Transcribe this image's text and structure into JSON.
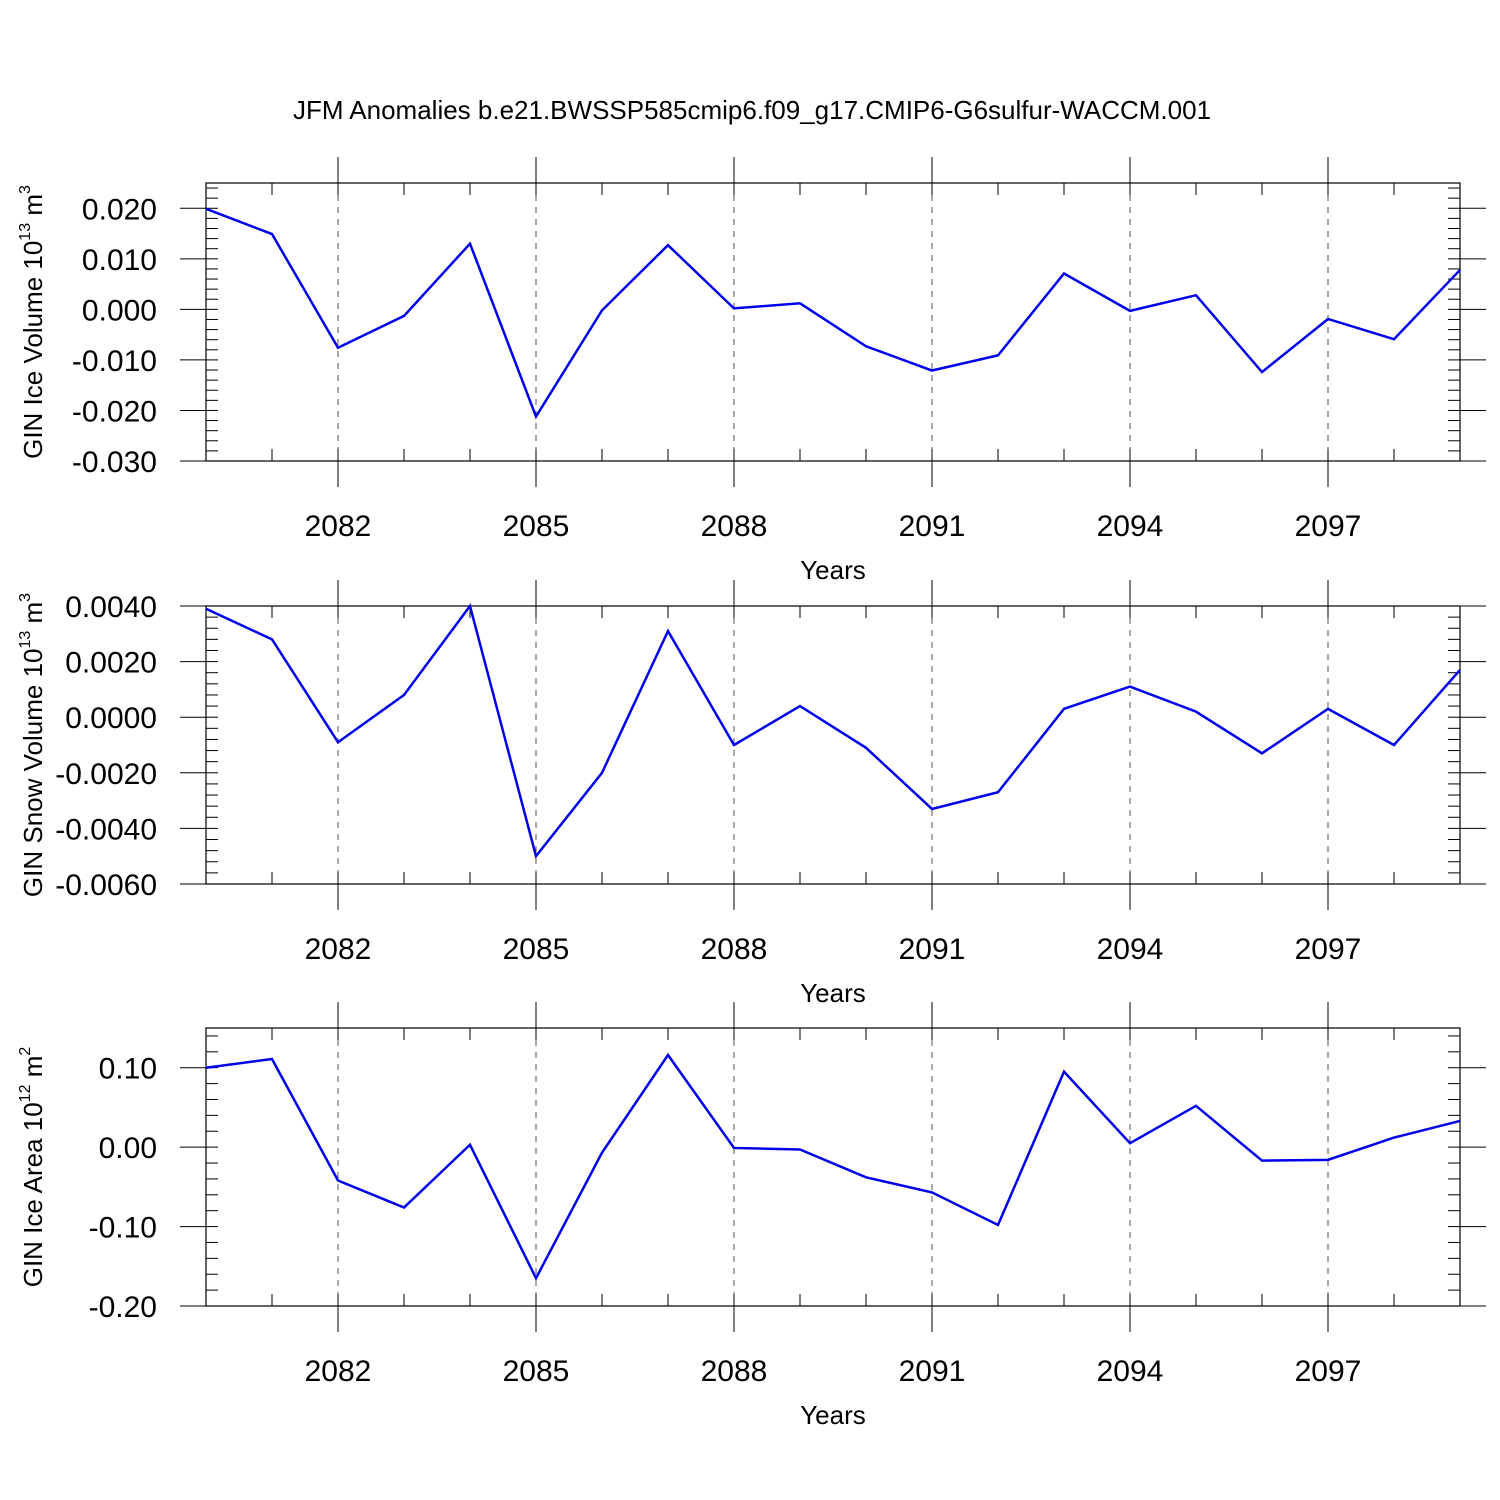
{
  "title": "JFM Anomalies b.e21.BWSSP585cmip6.f09_g17.CMIP6-G6sulfur-WACCM.001",
  "colors": {
    "line": "#0000ee",
    "axes": "#000000",
    "grid": "#555555"
  },
  "chart_data": [
    {
      "type": "line",
      "xlabel": "Years",
      "ylabel": {
        "text": "GIN Ice Volume 10",
        "exp": "13",
        "unit": " m",
        "unit_exp": "3"
      },
      "xlim": [
        2080,
        2099
      ],
      "x_ticks": [
        2082,
        2085,
        2088,
        2091,
        2094,
        2097
      ],
      "x_tick_labels": [
        "2082",
        "2085",
        "2088",
        "2091",
        "2094",
        "2097"
      ],
      "ylim": [
        -0.03,
        0.025
      ],
      "y_ticks": [
        0.02,
        0.01,
        0.0,
        -0.01,
        -0.02,
        -0.03
      ],
      "y_tick_labels": [
        "0.020",
        "0.010",
        "0.000",
        "-0.010",
        "-0.020",
        "-0.030"
      ],
      "grid": "vertical dashed at major x ticks",
      "series": [
        {
          "x": [
            2080,
            2081,
            2082,
            2083,
            2084,
            2085,
            2086,
            2087,
            2088,
            2089,
            2090,
            2091,
            2092,
            2093,
            2094,
            2095,
            2096,
            2097,
            2098,
            2099
          ],
          "values": [
            0.0199,
            0.0149,
            -0.0076,
            -0.0013,
            0.013,
            -0.0212,
            -0.0002,
            0.0127,
            0.0002,
            0.0012,
            -0.0073,
            -0.0121,
            -0.0091,
            0.0071,
            -0.0003,
            0.0028,
            -0.0124,
            -0.0019,
            -0.0059,
            0.0078
          ]
        }
      ]
    },
    {
      "type": "line",
      "xlabel": "Years",
      "ylabel": {
        "text": "GIN Snow Volume 10",
        "exp": "13",
        "unit": " m",
        "unit_exp": "3"
      },
      "xlim": [
        2080,
        2099
      ],
      "x_ticks": [
        2082,
        2085,
        2088,
        2091,
        2094,
        2097
      ],
      "x_tick_labels": [
        "2082",
        "2085",
        "2088",
        "2091",
        "2094",
        "2097"
      ],
      "ylim": [
        -0.006,
        0.004
      ],
      "y_ticks": [
        0.004,
        0.002,
        0.0,
        -0.002,
        -0.004,
        -0.006
      ],
      "y_tick_labels": [
        "0.0040",
        "0.0020",
        "0.0000",
        "-0.0020",
        "-0.0040",
        "-0.0060"
      ],
      "grid": "vertical dashed at major x ticks",
      "series": [
        {
          "x": [
            2080,
            2081,
            2082,
            2083,
            2084,
            2085,
            2086,
            2087,
            2088,
            2089,
            2090,
            2091,
            2092,
            2093,
            2094,
            2095,
            2096,
            2097,
            2098,
            2099
          ],
          "values": [
            0.0039,
            0.0028,
            -0.0009,
            0.0008,
            0.004,
            -0.005,
            -0.002,
            0.0031,
            -0.001,
            0.0004,
            -0.0011,
            -0.0033,
            -0.0027,
            0.0003,
            0.0011,
            0.0002,
            -0.0013,
            0.0003,
            -0.001,
            0.0017
          ]
        }
      ]
    },
    {
      "type": "line",
      "xlabel": "Years",
      "ylabel": {
        "text": "GIN Ice Area 10",
        "exp": "12",
        "unit": " m",
        "unit_exp": "2"
      },
      "xlim": [
        2080,
        2099
      ],
      "x_ticks": [
        2082,
        2085,
        2088,
        2091,
        2094,
        2097
      ],
      "x_tick_labels": [
        "2082",
        "2085",
        "2088",
        "2091",
        "2094",
        "2097"
      ],
      "ylim": [
        -0.2,
        0.15
      ],
      "y_ticks": [
        0.1,
        0.0,
        -0.1,
        -0.2
      ],
      "y_tick_labels": [
        "0.10",
        "0.00",
        "-0.10",
        "-0.20"
      ],
      "grid": "vertical dashed at major x ticks",
      "series": [
        {
          "x": [
            2080,
            2081,
            2082,
            2083,
            2084,
            2085,
            2086,
            2087,
            2088,
            2089,
            2090,
            2091,
            2092,
            2093,
            2094,
            2095,
            2096,
            2097,
            2098,
            2099
          ],
          "values": [
            0.1,
            0.111,
            -0.042,
            -0.076,
            0.003,
            -0.165,
            -0.007,
            0.116,
            -0.001,
            -0.003,
            -0.038,
            -0.057,
            -0.098,
            0.095,
            0.005,
            0.052,
            -0.017,
            -0.016,
            0.012,
            0.033
          ]
        }
      ]
    }
  ]
}
